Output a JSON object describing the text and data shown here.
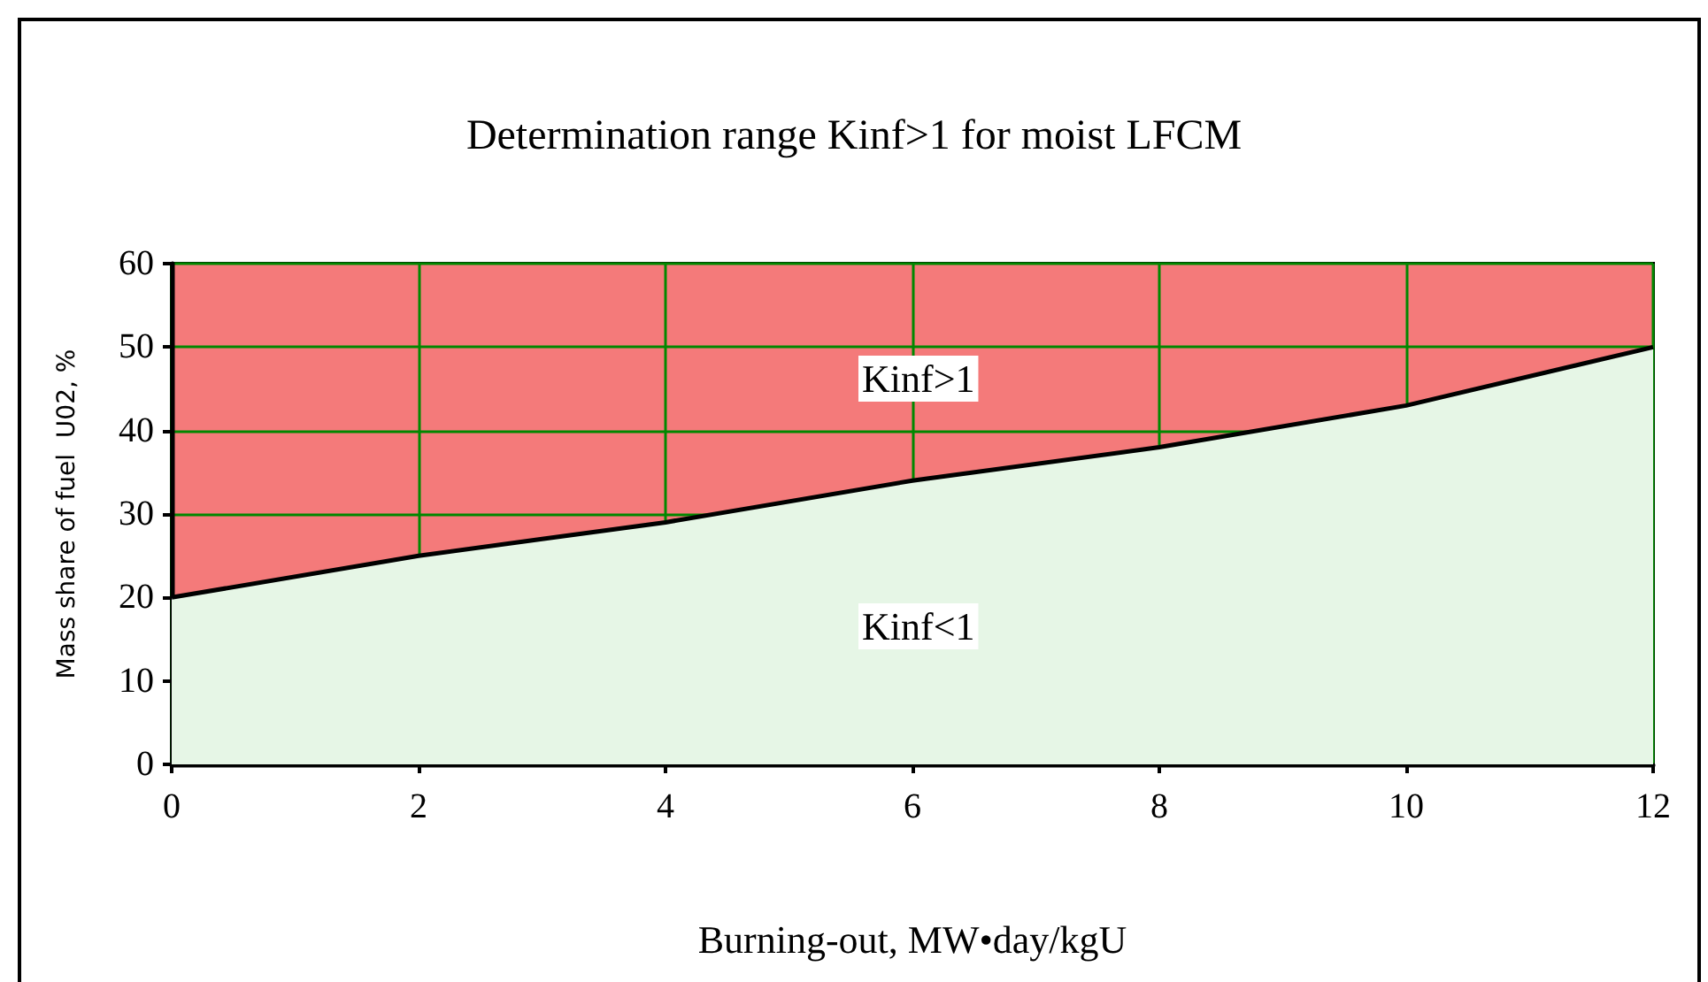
{
  "chart_data": {
    "type": "area",
    "title": "Determination range Kinf>1 for moist LFCM",
    "xlabel": "Burning-out, MW•day/kgU",
    "ylabel": "Mass share of fuel  U02, %",
    "x": [
      0,
      2,
      3,
      4,
      6,
      8,
      10,
      12
    ],
    "series": [
      {
        "color": "#e6f6e6",
        "values": [
          20,
          25,
          27,
          29,
          34,
          38,
          43,
          50
        ]
      }
    ],
    "xlim": [
      0,
      12
    ],
    "xticks": [
      0,
      2,
      4,
      6,
      8,
      10,
      12
    ],
    "ylim": [
      0,
      60
    ],
    "yticks": [
      0,
      10,
      20,
      30,
      40,
      50,
      60
    ],
    "grid": true,
    "bands": [
      {
        "axis": "y",
        "from": 20,
        "to": 60,
        "color": "#f47a7a"
      }
    ],
    "annotations": [
      "Kinf>1",
      "Kinf<1"
    ]
  }
}
